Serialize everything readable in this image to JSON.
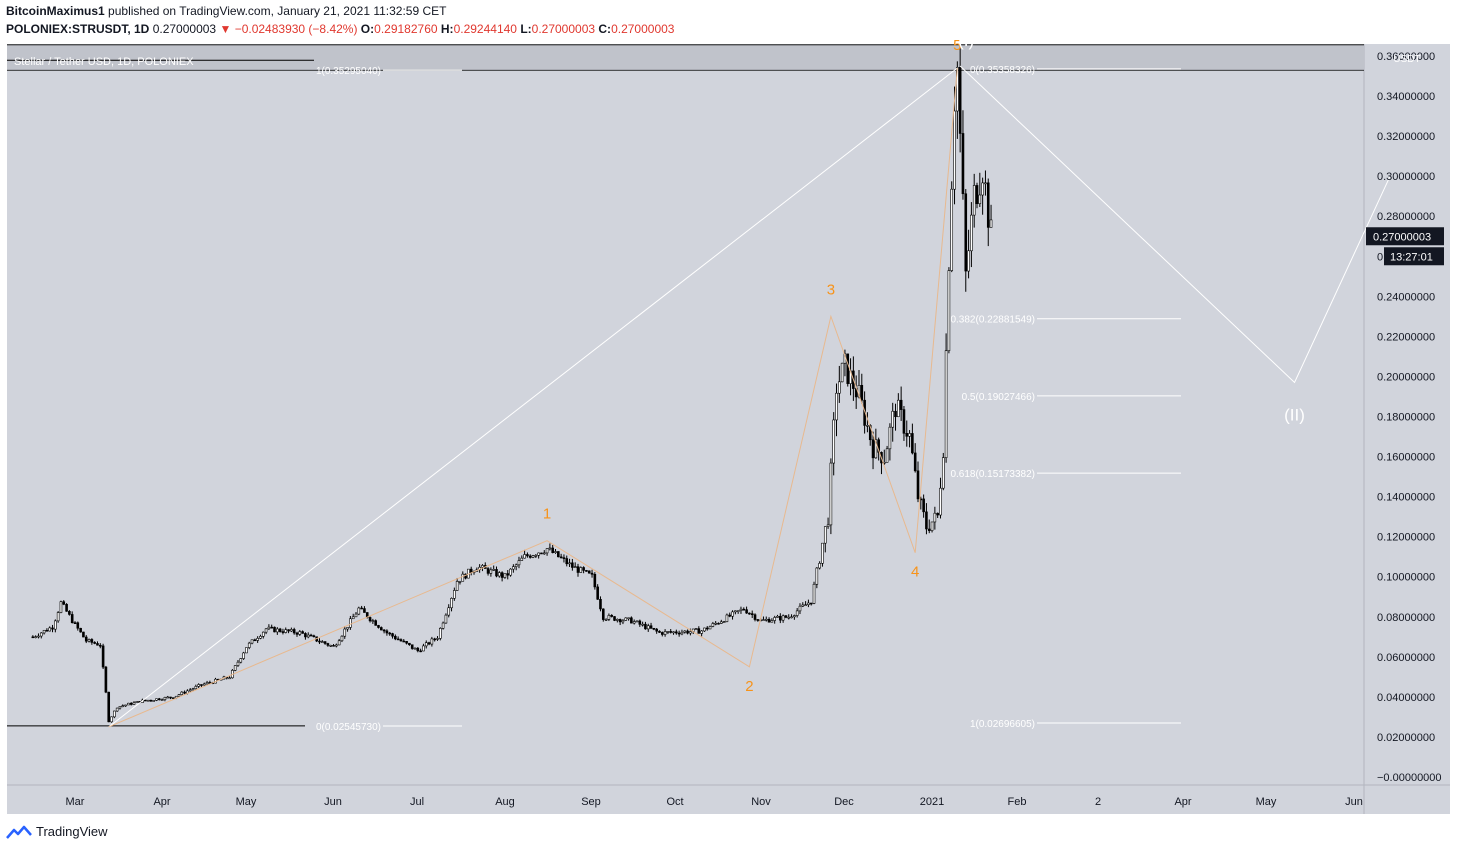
{
  "header": {
    "author": "BitcoinMaximus1",
    "published": "published on TradingView.com, January 21, 2021 11:32:59 CET",
    "symbol": "POLONIEX:STRUSDT, 1D",
    "last": "0.27000003",
    "change": "−0.02483930 (−8.42%)",
    "o_label": "O:",
    "o": "0.29182760",
    "h_label": "H:",
    "h": "0.29244140",
    "l_label": "L:",
    "l": "0.27000003",
    "c_label": "C:",
    "c": "0.27000003"
  },
  "legend_title": "Stellar / Tether USD, 1D, POLONIEX",
  "footer": {
    "brand": "TradingView"
  },
  "colors": {
    "chart_bg": "#d1d4dc",
    "band": "#c0c3cb",
    "candle": "#000000",
    "wave": "#f7931a",
    "fib": "#ffffff",
    "label_bg": "#131722"
  },
  "chart_data": {
    "type": "candlestick",
    "currency": "USDT",
    "y_ticks": [
      "0.36000000",
      "0.34000000",
      "0.32000000",
      "0.30000000",
      "0.28000000",
      "0.26000000",
      "0.24000000",
      "0.22000000",
      "0.20000000",
      "0.18000000",
      "0.16000000",
      "0.14000000",
      "0.12000000",
      "0.10000000",
      "0.08000000",
      "0.06000000",
      "0.04000000",
      "0.02000000",
      "−0.00000000"
    ],
    "ylim": [
      -0.004,
      0.366
    ],
    "x_ticks": [
      "Mar",
      "Apr",
      "May",
      "Jun",
      "Jul",
      "Aug",
      "Sep",
      "Oct",
      "Nov",
      "Dec",
      "2021",
      "Feb",
      "2",
      "Apr",
      "May",
      "Jun"
    ],
    "price_label": "0.27000003",
    "countdown": "13:27:01",
    "price_series": [
      [
        "2020-02-15",
        0.07
      ],
      [
        "2020-02-22",
        0.075
      ],
      [
        "2020-02-25",
        0.087
      ],
      [
        "2020-03-01",
        0.076
      ],
      [
        "2020-03-05",
        0.068
      ],
      [
        "2020-03-10",
        0.066
      ],
      [
        "2020-03-12",
        0.042
      ],
      [
        "2020-03-13",
        0.028
      ],
      [
        "2020-03-16",
        0.035
      ],
      [
        "2020-03-25",
        0.038
      ],
      [
        "2020-04-05",
        0.04
      ],
      [
        "2020-04-15",
        0.046
      ],
      [
        "2020-04-25",
        0.05
      ],
      [
        "2020-05-01",
        0.065
      ],
      [
        "2020-05-08",
        0.074
      ],
      [
        "2020-05-20",
        0.072
      ],
      [
        "2020-06-01",
        0.065
      ],
      [
        "2020-06-10",
        0.084
      ],
      [
        "2020-06-20",
        0.072
      ],
      [
        "2020-07-01",
        0.063
      ],
      [
        "2020-07-08",
        0.07
      ],
      [
        "2020-07-15",
        0.098
      ],
      [
        "2020-07-22",
        0.105
      ],
      [
        "2020-08-01",
        0.1
      ],
      [
        "2020-08-08",
        0.11
      ],
      [
        "2020-08-16",
        0.114
      ],
      [
        "2020-08-25",
        0.105
      ],
      [
        "2020-09-01",
        0.1
      ],
      [
        "2020-09-05",
        0.08
      ],
      [
        "2020-09-15",
        0.078
      ],
      [
        "2020-09-25",
        0.072
      ],
      [
        "2020-10-10",
        0.073
      ],
      [
        "2020-10-25",
        0.084
      ],
      [
        "2020-10-31",
        0.078
      ],
      [
        "2020-11-10",
        0.08
      ],
      [
        "2020-11-18",
        0.088
      ],
      [
        "2020-11-21",
        0.11
      ],
      [
        "2020-11-24",
        0.13
      ],
      [
        "2020-11-27",
        0.195
      ],
      [
        "2020-11-30",
        0.205
      ],
      [
        "2020-12-05",
        0.19
      ],
      [
        "2020-12-10",
        0.165
      ],
      [
        "2020-12-14",
        0.16
      ],
      [
        "2020-12-18",
        0.185
      ],
      [
        "2020-12-23",
        0.17
      ],
      [
        "2020-12-26",
        0.14
      ],
      [
        "2020-12-29",
        0.125
      ],
      [
        "2021-01-02",
        0.13
      ],
      [
        "2021-01-04",
        0.165
      ],
      [
        "2021-01-06",
        0.26
      ],
      [
        "2021-01-08",
        0.34
      ],
      [
        "2021-01-09",
        0.354
      ],
      [
        "2021-01-12",
        0.25
      ],
      [
        "2021-01-15",
        0.29
      ],
      [
        "2021-01-18",
        0.305
      ],
      [
        "2021-01-21",
        0.27
      ]
    ],
    "wave_points": [
      {
        "label": "1",
        "date": "2020-08-16",
        "value": 0.118
      },
      {
        "label": "2",
        "date": "2020-10-27",
        "value": 0.055
      },
      {
        "label": "3",
        "date": "2020-11-25",
        "value": 0.23
      },
      {
        "label": "4",
        "date": "2020-12-25",
        "value": 0.112
      },
      {
        "label": "5",
        "date": "2021-01-09",
        "value": 0.354
      }
    ],
    "wave_start": {
      "date": "2020-03-13",
      "value": 0.025
    },
    "major_wave_labels": [
      {
        "label": "(I)",
        "date": "2021-01-10",
        "value": 0.355
      },
      {
        "label": "(II)",
        "date": "2021-05-09",
        "value": 0.195
      }
    ],
    "projection": [
      {
        "date": "2021-01-10",
        "value": 0.355
      },
      {
        "date": "2021-05-09",
        "value": 0.197
      },
      {
        "date": "2021-06-12",
        "value": 0.3
      }
    ],
    "fib_left": [
      {
        "label": "1(0.35295040)",
        "value": 0.35295
      },
      {
        "label": "0(0.02545730)",
        "value": 0.02546
      }
    ],
    "fib_right": [
      {
        "label": "0(0.35358326)",
        "value": 0.35358
      },
      {
        "label": "0.382(0.22881549)",
        "value": 0.22882
      },
      {
        "label": "0.5(0.19027466)",
        "value": 0.19027
      },
      {
        "label": "0.618(0.15173382)",
        "value": 0.15173
      },
      {
        "label": "1(0.02696605)",
        "value": 0.02697
      }
    ],
    "band": [
      0.3529,
      0.3656
    ],
    "support": 0.0255
  }
}
